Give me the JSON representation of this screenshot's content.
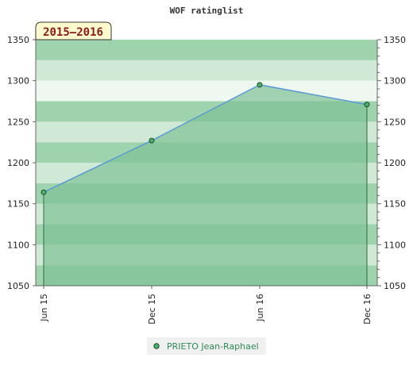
{
  "chart_data": {
    "type": "area",
    "title": "WOF ratinglist",
    "season_badge": "2015–2016",
    "categories": [
      "Jun 15",
      "Dec 15",
      "Jun 16",
      "Dec 16"
    ],
    "series": [
      {
        "name": "PRIETO Jean-Raphael",
        "values": [
          1164,
          1227,
          1295,
          1271
        ]
      }
    ],
    "ylim": [
      1050,
      1350
    ],
    "y_ticks": [
      1050,
      1100,
      1150,
      1200,
      1250,
      1300,
      1350
    ],
    "y_axis_sides": [
      "left",
      "right"
    ],
    "grid": true,
    "legend_position": "bottom-center",
    "colors": {
      "line": "#5b9bd5",
      "area": "#7fc196",
      "marker": "#4caf6a",
      "band_dark": "#9fd3ad",
      "band_light": "#cfe9d6",
      "band_pale": "#eef8f1",
      "badge_bg": "#fffacd",
      "badge_text": "#8b1a1a",
      "legend_text": "#2e8b57"
    }
  }
}
